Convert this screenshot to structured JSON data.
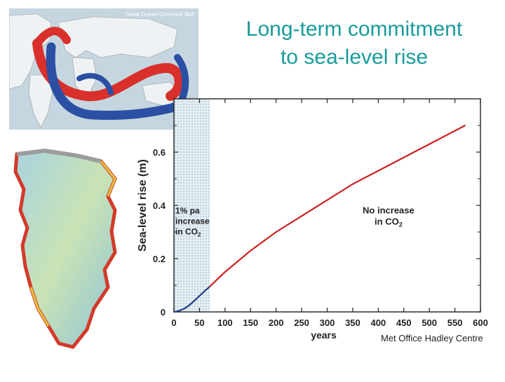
{
  "slide": {
    "title_line1": "Long-term commitment",
    "title_line2": "to sea-level rise"
  },
  "map": {
    "caption": "Great Ocean Conveyor Belt"
  },
  "credit": "Met Office Hadley Centre",
  "chart_data": {
    "type": "line",
    "title": "",
    "xlabel": "years",
    "ylabel": "Sea-level rise (m)",
    "xlim": [
      0,
      600
    ],
    "ylim": [
      0,
      0.8
    ],
    "xticks": [
      0,
      50,
      100,
      150,
      200,
      250,
      300,
      350,
      400,
      450,
      500,
      550,
      600
    ],
    "yticks": [
      0,
      0.2,
      0.4,
      0.6
    ],
    "ytick_labels": [
      "0",
      "0.2",
      "0.4",
      "0.6"
    ],
    "grid": false,
    "shaded_region": {
      "x_start": 0,
      "x_end": 70,
      "label_lines": [
        "1% pa",
        "increase",
        "in CO"
      ],
      "label_sub": "2"
    },
    "annotation": {
      "lines": [
        "No increase",
        "in CO"
      ],
      "sub": "2",
      "x": 420,
      "y": 0.37
    },
    "series": [
      {
        "color": "#1f3c88",
        "x": [
          0,
          10,
          20,
          30,
          40,
          50,
          60,
          70
        ],
        "y": [
          0,
          0.004,
          0.012,
          0.025,
          0.042,
          0.06,
          0.078,
          0.095
        ]
      },
      {
        "color": "#cc2222",
        "x": [
          70,
          100,
          150,
          200,
          250,
          300,
          350,
          400,
          450,
          500,
          550,
          570
        ],
        "y": [
          0.095,
          0.15,
          0.23,
          0.3,
          0.36,
          0.42,
          0.48,
          0.53,
          0.58,
          0.63,
          0.68,
          0.7
        ]
      }
    ]
  }
}
